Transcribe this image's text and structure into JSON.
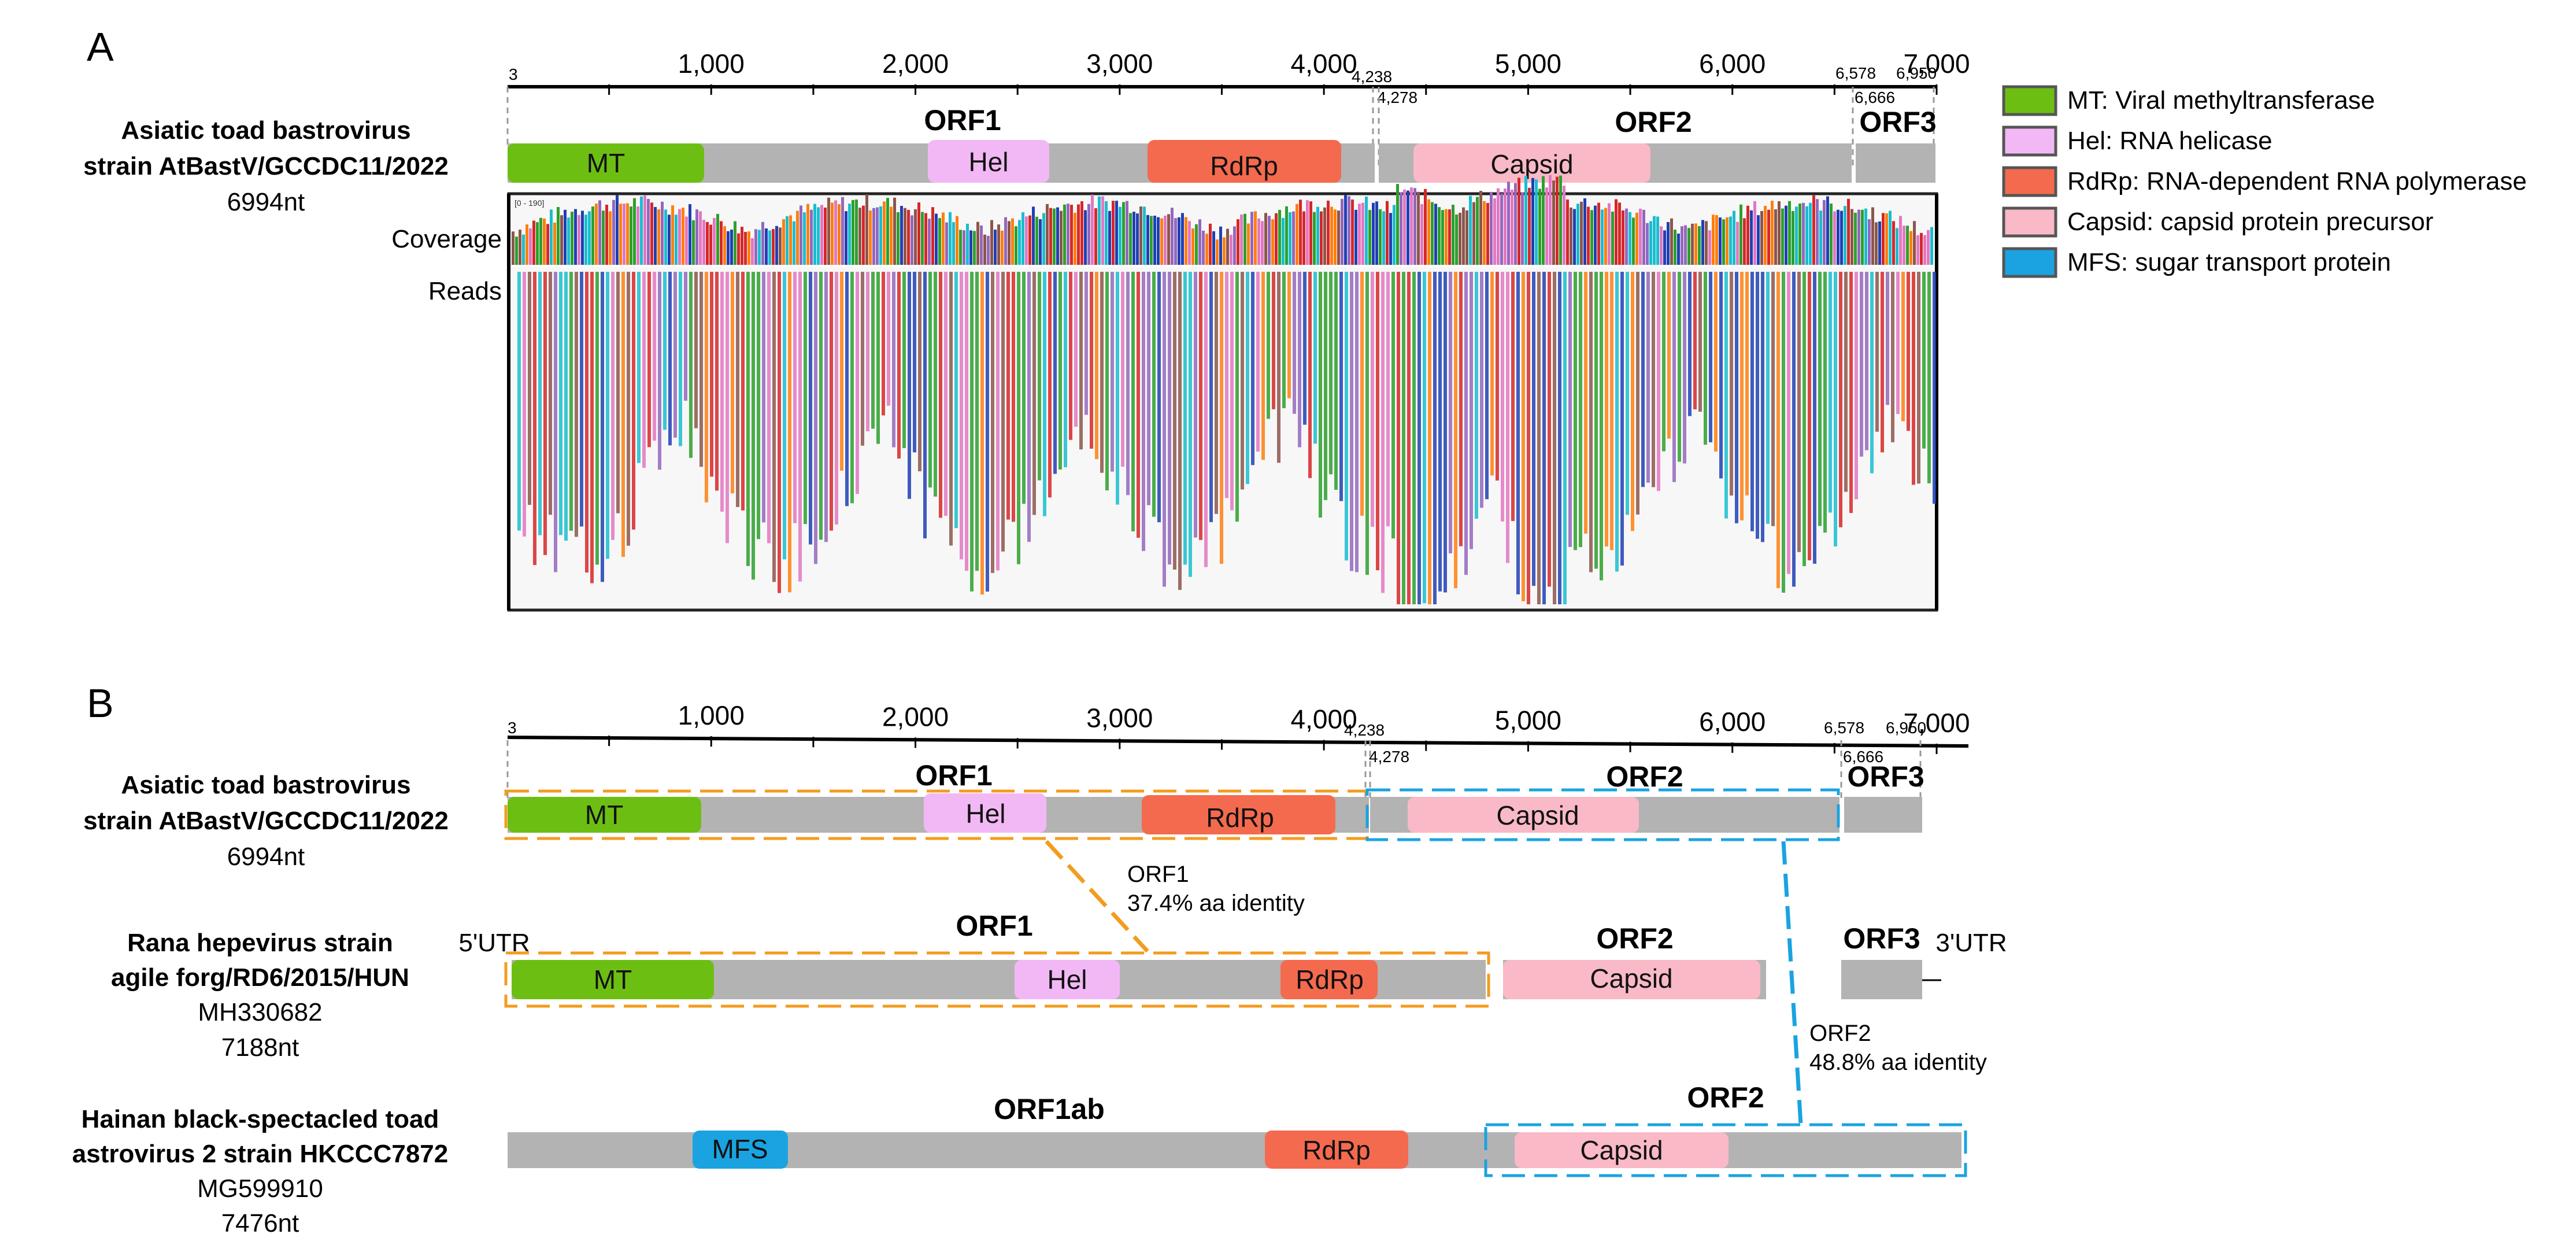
{
  "panelA": {
    "letter": "A",
    "ruler": {
      "ticks": [
        "1,000",
        "2,000",
        "3,000",
        "4,000",
        "5,000",
        "6,000",
        "7,000"
      ],
      "start": "3"
    },
    "boundaries": [
      "4,238",
      "4,278",
      "6,578",
      "6,666",
      "6,950"
    ],
    "genome": {
      "name1": "Asiatic toad bastrovirus",
      "name2": "strain AtBastV/GCCDC11/2022",
      "length": "6994nt"
    },
    "orfs": [
      "ORF1",
      "ORF2",
      "ORF3"
    ],
    "domains": [
      "MT",
      "Hel",
      "RdRp",
      "Capsid"
    ],
    "coverage_label": "Coverage",
    "reads_label": "Reads",
    "coverage_range": "[0 - 190]"
  },
  "legend": [
    {
      "label": "MT: Viral methyltransferase",
      "color": "#6cbf12",
      "border": "#555555"
    },
    {
      "label": "Hel: RNA helicase",
      "color": "#f2b8f5",
      "border": "#555555"
    },
    {
      "label": "RdRp: RNA-dependent RNA polymerase",
      "color": "#f46a4e",
      "border": "#555555"
    },
    {
      "label": "Capsid: capsid protein precursor",
      "color": "#f9b9c7",
      "border": "#555555"
    },
    {
      "label": "MFS: sugar transport protein",
      "color": "#1aa3e0",
      "border": "#555555"
    }
  ],
  "panelB": {
    "letter": "B",
    "ruler": {
      "ticks": [
        "1,000",
        "2,000",
        "3,000",
        "4,000",
        "5,000",
        "6,000",
        "7,000"
      ],
      "start": "3"
    },
    "boundaries": [
      "4,238",
      "4,278",
      "6,578",
      "6,666",
      "6,950"
    ],
    "genome1": {
      "name1": "Asiatic toad bastrovirus",
      "name2": "strain AtBastV/GCCDC11/2022",
      "length": "6994nt",
      "orfs": [
        "ORF1",
        "ORF2",
        "ORF3"
      ],
      "domains": [
        "MT",
        "Hel",
        "RdRp",
        "Capsid"
      ]
    },
    "genome2": {
      "name1": "Rana hepevirus strain",
      "name2": "agile forg/RD6/2015/HUN",
      "accession": "MH330682",
      "length": "7188nt",
      "orfs": [
        "ORF1",
        "ORF2",
        "ORF3"
      ],
      "domains": [
        "MT",
        "Hel",
        "RdRp",
        "Capsid"
      ],
      "utr5": "5'UTR",
      "utr3": "3'UTR"
    },
    "genome3": {
      "name1": "Hainan black-spectacled toad",
      "name2": "astrovirus 2 strain HKCCC7872",
      "accession": "MG599910",
      "length": "7476nt",
      "orfs": [
        "ORF1ab",
        "ORF2"
      ],
      "domains": [
        "MFS",
        "RdRp",
        "Capsid"
      ]
    },
    "identity1": {
      "line1": "ORF1",
      "line2": "37.4% aa identity"
    },
    "identity2": {
      "line1": "ORF2",
      "line2": "48.8% aa identity"
    }
  },
  "colors": {
    "genome_bar": "#b3b3b3",
    "orf1_box": "#f39c1f",
    "orf2_box": "#1ba3e0",
    "MT": "#6cbf12",
    "Hel": "#f2b8f5",
    "RdRp": "#f46a4e",
    "Capsid": "#f9b9c7",
    "MFS": "#1aa3e0"
  }
}
